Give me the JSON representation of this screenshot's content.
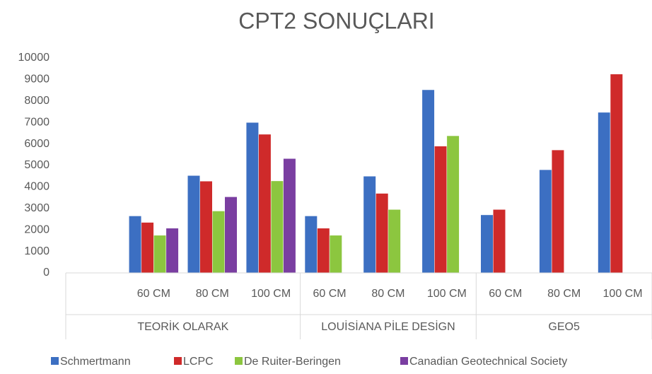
{
  "chart_data": {
    "type": "bar",
    "title": "CPT2 SONUÇLARI",
    "categories": [
      null,
      "60 CM",
      "80 CM",
      "100 CM",
      "60 CM",
      "80 CM",
      "100 CM",
      "60 CM",
      "80 CM",
      "100 CM"
    ],
    "groups": [
      {
        "label": "TEORİK OLARAK",
        "size": 4
      },
      {
        "label": "LOUİSİANA PİLE DESİGN",
        "size": 3
      },
      {
        "label": "GEO5",
        "size": 3
      }
    ],
    "series": [
      {
        "name": "Schmertmann",
        "color": "#3c6fc2",
        "values": [
          null,
          2650,
          4530,
          7000,
          2650,
          4500,
          8520,
          2700,
          4800,
          7470
        ]
      },
      {
        "name": "LCPC",
        "color": "#cf2a2a",
        "values": [
          null,
          2350,
          4270,
          6450,
          2080,
          3700,
          5900,
          2950,
          5720,
          9250
        ]
      },
      {
        "name": "De Ruiter-Beringen",
        "color": "#8cc63f",
        "values": [
          null,
          1750,
          2880,
          4280,
          1750,
          2950,
          6380,
          null,
          null,
          null
        ]
      },
      {
        "name": "Canadian Geotechnical Society",
        "color": "#7a3ea1",
        "values": [
          null,
          2080,
          3540,
          5320,
          null,
          null,
          null,
          null,
          null,
          null
        ]
      }
    ],
    "ylim": [
      0,
      10000
    ],
    "yticks": [
      0,
      1000,
      2000,
      3000,
      4000,
      5000,
      6000,
      7000,
      8000,
      9000,
      10000
    ]
  }
}
